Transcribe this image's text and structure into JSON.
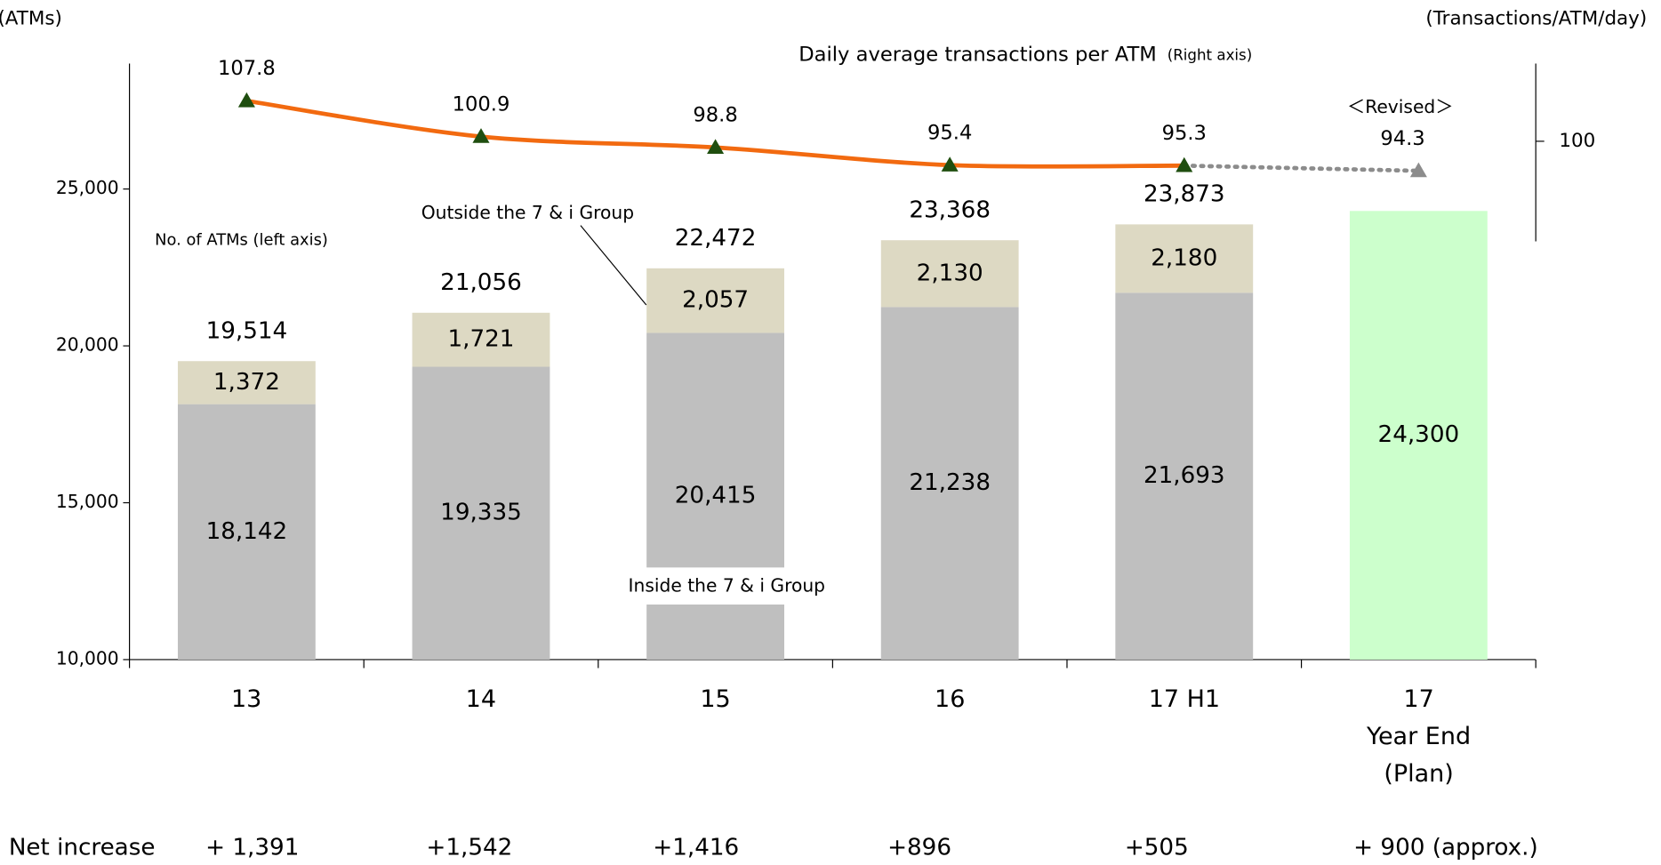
{
  "chart_data": {
    "type": "bar",
    "categories": [
      "13",
      "14",
      "15",
      "16",
      "17 H1",
      "17\nYear End\n(Plan)"
    ],
    "series": [
      {
        "name": "Inside the 7 & i Group",
        "color": "#bfbfbf",
        "values": [
          18142,
          19335,
          20415,
          21238,
          21693,
          null
        ],
        "value_labels": [
          "18,142",
          "19,335",
          "20,415",
          "21,238",
          "21,693",
          null
        ]
      },
      {
        "name": "Outside the 7 & i Group",
        "color": "#ddd9c3",
        "values": [
          1372,
          1721,
          2057,
          2130,
          2180,
          null
        ],
        "value_labels": [
          "1,372",
          "1,721",
          "2,057",
          "2,130",
          "2,180",
          null
        ]
      },
      {
        "color": "#ccffcc",
        "values": [
          null,
          null,
          null,
          null,
          null,
          24300
        ],
        "value_labels": [
          null,
          null,
          null,
          null,
          null,
          "24,300"
        ]
      }
    ],
    "totals": {
      "values": [
        19514,
        21056,
        22472,
        23368,
        23873,
        null
      ],
      "value_labels": [
        "19,514",
        "21,056",
        "22,472",
        "23,368",
        "23,873",
        null
      ]
    },
    "line": {
      "type": "line",
      "name": "Daily average transactions per ATM",
      "axis": "y2",
      "color": "#f26a10",
      "marker_color": "#1f4e0f",
      "plan_color": "#8c8c8c",
      "values": [
        107.8,
        100.9,
        98.8,
        95.4,
        95.3,
        94.3
      ]
    },
    "ylim": [
      10000,
      29000
    ],
    "yticks": [
      {
        "value": 10000,
        "label": "10,000"
      },
      {
        "value": 15000,
        "label": "15,000"
      },
      {
        "value": 20000,
        "label": "20,000"
      },
      {
        "value": 25000,
        "label": "25,000"
      }
    ],
    "y2lim": [
      0,
      115
    ],
    "y2ticks": [
      100
    ],
    "annotations": {
      "left_axis_unit": "(ATMs)",
      "right_axis_unit": "(Transactions/ATM/day)",
      "right_axis_note": "(Right axis)",
      "bars_note": "No. of ATMs (left axis)",
      "revised": "＜Revised＞"
    },
    "net_increase": {
      "label": "Net increase",
      "values": [
        1391,
        1542,
        1416,
        896,
        505,
        900
      ],
      "value_labels": [
        "+ 1,391",
        "+1,542",
        "+1,416",
        "+896",
        "+505",
        "+ 900 (approx.)"
      ]
    }
  }
}
